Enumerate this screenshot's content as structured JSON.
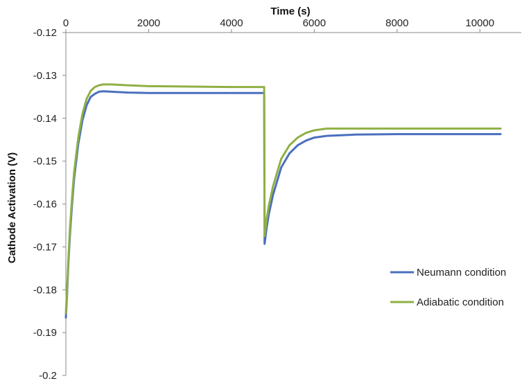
{
  "chart_data": {
    "type": "line",
    "xlabel": "Time (s)",
    "ylabel": "Cathode Activation (V)",
    "x_axis_position": "top",
    "xlim": [
      0,
      11000
    ],
    "ylim": [
      -0.2,
      -0.12
    ],
    "x_ticks": [
      0,
      2000,
      4000,
      6000,
      8000,
      10000
    ],
    "y_ticks": [
      -0.12,
      -0.13,
      -0.14,
      -0.15,
      -0.16,
      -0.17,
      -0.18,
      -0.19,
      -0.2
    ],
    "x_tick_labels": [
      "0",
      "2000",
      "4000",
      "6000",
      "8000",
      "10000"
    ],
    "y_tick_labels": [
      "-0.12",
      "-0.13",
      "-0.14",
      "-0.15",
      "-0.16",
      "-0.17",
      "-0.18",
      "-0.19",
      "-0.2"
    ],
    "grid": false,
    "legend_position": "bottom-right",
    "series": [
      {
        "name": "Neumann condition",
        "color": "#4a6fbd",
        "points": [
          [
            0,
            -0.1865
          ],
          [
            30,
            -0.181
          ],
          [
            60,
            -0.174
          ],
          [
            100,
            -0.167
          ],
          [
            150,
            -0.16
          ],
          [
            200,
            -0.154
          ],
          [
            300,
            -0.146
          ],
          [
            400,
            -0.1405
          ],
          [
            500,
            -0.137
          ],
          [
            600,
            -0.135
          ],
          [
            700,
            -0.1343
          ],
          [
            800,
            -0.1338
          ],
          [
            900,
            -0.1337
          ],
          [
            1100,
            -0.1338
          ],
          [
            1500,
            -0.134
          ],
          [
            2000,
            -0.1341
          ],
          [
            3000,
            -0.1341
          ],
          [
            4000,
            -0.1341
          ],
          [
            4790,
            -0.1341
          ],
          [
            4800,
            -0.1693
          ],
          [
            4850,
            -0.1655
          ],
          [
            4900,
            -0.1625
          ],
          [
            5000,
            -0.158
          ],
          [
            5200,
            -0.1515
          ],
          [
            5400,
            -0.1482
          ],
          [
            5600,
            -0.1463
          ],
          [
            5800,
            -0.1452
          ],
          [
            6000,
            -0.1445
          ],
          [
            6300,
            -0.1441
          ],
          [
            7000,
            -0.1438
          ],
          [
            8000,
            -0.1437
          ],
          [
            9000,
            -0.1437
          ],
          [
            10500,
            -0.1437
          ]
        ]
      },
      {
        "name": "Adiabatic condition",
        "color": "#8fb044",
        "points": [
          [
            0,
            -0.1855
          ],
          [
            30,
            -0.18
          ],
          [
            60,
            -0.173
          ],
          [
            100,
            -0.1655
          ],
          [
            150,
            -0.1585
          ],
          [
            200,
            -0.1525
          ],
          [
            300,
            -0.1445
          ],
          [
            400,
            -0.139
          ],
          [
            500,
            -0.1355
          ],
          [
            600,
            -0.1336
          ],
          [
            700,
            -0.1327
          ],
          [
            800,
            -0.1323
          ],
          [
            900,
            -0.1321
          ],
          [
            1100,
            -0.1321
          ],
          [
            1500,
            -0.1323
          ],
          [
            2000,
            -0.1325
          ],
          [
            3000,
            -0.1326
          ],
          [
            4000,
            -0.1327
          ],
          [
            4790,
            -0.1327
          ],
          [
            4800,
            -0.1675
          ],
          [
            4850,
            -0.1635
          ],
          [
            4900,
            -0.1605
          ],
          [
            5000,
            -0.156
          ],
          [
            5200,
            -0.1495
          ],
          [
            5400,
            -0.1463
          ],
          [
            5600,
            -0.1445
          ],
          [
            5800,
            -0.1434
          ],
          [
            6000,
            -0.1428
          ],
          [
            6300,
            -0.1424
          ],
          [
            7000,
            -0.1424
          ],
          [
            8000,
            -0.1424
          ],
          [
            9000,
            -0.1424
          ],
          [
            10500,
            -0.1424
          ]
        ]
      }
    ]
  }
}
